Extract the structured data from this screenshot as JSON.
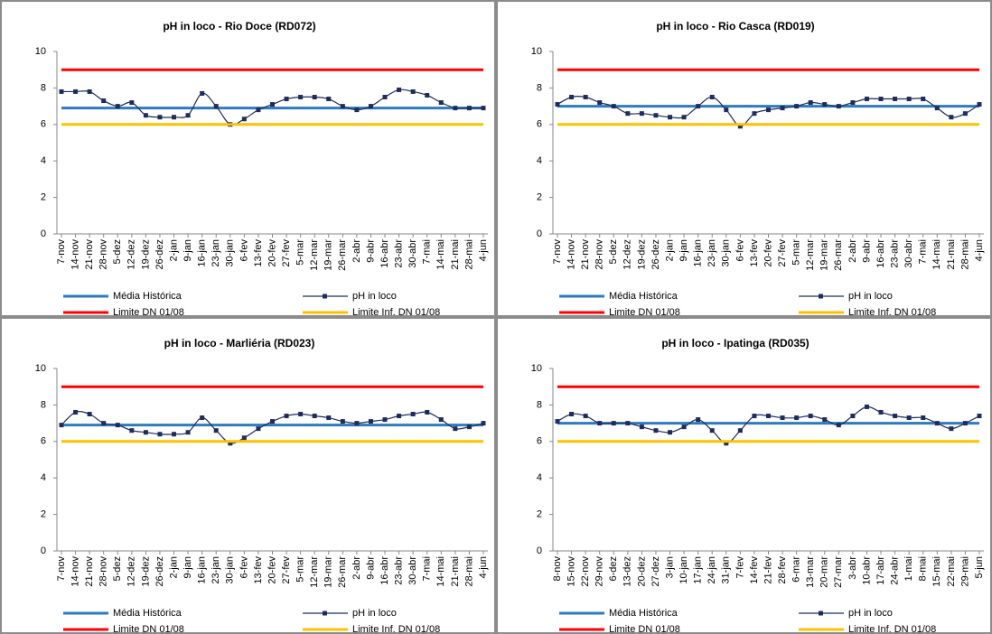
{
  "chart_data": [
    {
      "type": "line",
      "title": "pH in loco - Rio Doce (RD072)",
      "categories": [
        "7-nov",
        "14-nov",
        "21-nov",
        "28-nov",
        "5-dez",
        "12-dez",
        "19-dez",
        "26-dez",
        "2-jan",
        "9-jan",
        "16-jan",
        "23-jan",
        "30-jan",
        "6-fev",
        "13-fev",
        "20-fev",
        "27-fev",
        "5-mar",
        "12-mar",
        "19-mar",
        "26-mar",
        "2-abr",
        "9-abr",
        "16-abr",
        "23-abr",
        "30-abr",
        "7-mai",
        "14-mai",
        "21-mai",
        "28-mai",
        "4-jun"
      ],
      "ylim": [
        0,
        10
      ],
      "yticks": [
        0,
        2,
        4,
        6,
        8,
        10
      ],
      "series": [
        {
          "name": "Média Histórica",
          "color": "#2e7bbf",
          "values": [
            6.9,
            6.9,
            6.9,
            6.9,
            6.9,
            6.9,
            6.9,
            6.9,
            6.9,
            6.9,
            6.9,
            6.9,
            6.9,
            6.9,
            6.9,
            6.9,
            6.9,
            6.9,
            6.9,
            6.9,
            6.9,
            6.9,
            6.9,
            6.9,
            6.9,
            6.9,
            6.9,
            6.9,
            6.9,
            6.9,
            6.9
          ]
        },
        {
          "name": "pH in loco",
          "color": "#1f2d5c",
          "markers": true,
          "smooth": true,
          "values": [
            7.8,
            7.8,
            7.8,
            7.3,
            7.0,
            7.2,
            6.5,
            6.4,
            6.4,
            6.5,
            7.7,
            7.0,
            6.0,
            6.3,
            6.8,
            7.1,
            7.4,
            7.5,
            7.5,
            7.4,
            7.0,
            6.8,
            7.0,
            7.5,
            7.9,
            7.8,
            7.6,
            7.2,
            6.9,
            6.9,
            6.9
          ]
        },
        {
          "name": "Limite DN 01/08",
          "color": "#ff0000",
          "values": [
            9,
            9,
            9,
            9,
            9,
            9,
            9,
            9,
            9,
            9,
            9,
            9,
            9,
            9,
            9,
            9,
            9,
            9,
            9,
            9,
            9,
            9,
            9,
            9,
            9,
            9,
            9,
            9,
            9,
            9,
            9
          ]
        },
        {
          "name": "Limite Inf. DN 01/08",
          "color": "#ffc000",
          "values": [
            6,
            6,
            6,
            6,
            6,
            6,
            6,
            6,
            6,
            6,
            6,
            6,
            6,
            6,
            6,
            6,
            6,
            6,
            6,
            6,
            6,
            6,
            6,
            6,
            6,
            6,
            6,
            6,
            6,
            6,
            6
          ]
        }
      ]
    },
    {
      "type": "line",
      "title": "pH in loco - Rio Casca (RD019)",
      "categories": [
        "7-nov",
        "14-nov",
        "21-nov",
        "28-nov",
        "5-dez",
        "12-dez",
        "19-dez",
        "26-dez",
        "2-jan",
        "9-jan",
        "16-jan",
        "23-jan",
        "30-jan",
        "6-fev",
        "13-fev",
        "20-fev",
        "27-fev",
        "5-mar",
        "12-mar",
        "19-mar",
        "26-mar",
        "2-abr",
        "9-abr",
        "16-abr",
        "23-abr",
        "30-abr",
        "7-mai",
        "14-mai",
        "21-mai",
        "28-mai",
        "4-jun"
      ],
      "ylim": [
        0,
        10
      ],
      "yticks": [
        0,
        2,
        4,
        6,
        8,
        10
      ],
      "series": [
        {
          "name": "Média Histórica",
          "color": "#2e7bbf",
          "values": [
            7.0,
            7.0,
            7.0,
            7.0,
            7.0,
            7.0,
            7.0,
            7.0,
            7.0,
            7.0,
            7.0,
            7.0,
            7.0,
            7.0,
            7.0,
            7.0,
            7.0,
            7.0,
            7.0,
            7.0,
            7.0,
            7.0,
            7.0,
            7.0,
            7.0,
            7.0,
            7.0,
            7.0,
            7.0,
            7.0,
            7.0
          ]
        },
        {
          "name": "pH in loco",
          "color": "#1f2d5c",
          "markers": true,
          "smooth": true,
          "values": [
            7.1,
            7.5,
            7.5,
            7.2,
            7.0,
            6.6,
            6.6,
            6.5,
            6.4,
            6.4,
            7.0,
            7.5,
            6.8,
            5.9,
            6.6,
            6.8,
            6.9,
            7.0,
            7.2,
            7.1,
            7.0,
            7.2,
            7.4,
            7.4,
            7.4,
            7.4,
            7.4,
            6.9,
            6.4,
            6.6,
            7.1
          ]
        },
        {
          "name": "Limite DN 01/08",
          "color": "#ff0000",
          "values": [
            9,
            9,
            9,
            9,
            9,
            9,
            9,
            9,
            9,
            9,
            9,
            9,
            9,
            9,
            9,
            9,
            9,
            9,
            9,
            9,
            9,
            9,
            9,
            9,
            9,
            9,
            9,
            9,
            9,
            9,
            9
          ]
        },
        {
          "name": "Limite Inf. DN 01/08",
          "color": "#ffc000",
          "values": [
            6,
            6,
            6,
            6,
            6,
            6,
            6,
            6,
            6,
            6,
            6,
            6,
            6,
            6,
            6,
            6,
            6,
            6,
            6,
            6,
            6,
            6,
            6,
            6,
            6,
            6,
            6,
            6,
            6,
            6,
            6
          ]
        }
      ]
    },
    {
      "type": "line",
      "title": "pH in loco - Marliéria (RD023)",
      "categories": [
        "7-nov",
        "14-nov",
        "21-nov",
        "28-nov",
        "5-dez",
        "12-dez",
        "19-dez",
        "26-dez",
        "2-jan",
        "9-jan",
        "16-jan",
        "23-jan",
        "30-jan",
        "6-fev",
        "13-fev",
        "20-fev",
        "27-fev",
        "5-mar",
        "12-mar",
        "19-mar",
        "26-mar",
        "2-abr",
        "9-abr",
        "16-abr",
        "23-abr",
        "30-abr",
        "7-mai",
        "14-mai",
        "21-mai",
        "28-mai",
        "4-jun"
      ],
      "ylim": [
        0,
        10
      ],
      "yticks": [
        0,
        2,
        4,
        6,
        8,
        10
      ],
      "series": [
        {
          "name": "Média Histórica",
          "color": "#2e7bbf",
          "values": [
            6.9,
            6.9,
            6.9,
            6.9,
            6.9,
            6.9,
            6.9,
            6.9,
            6.9,
            6.9,
            6.9,
            6.9,
            6.9,
            6.9,
            6.9,
            6.9,
            6.9,
            6.9,
            6.9,
            6.9,
            6.9,
            6.9,
            6.9,
            6.9,
            6.9,
            6.9,
            6.9,
            6.9,
            6.9,
            6.9,
            6.9
          ]
        },
        {
          "name": "pH in loco",
          "color": "#1f2d5c",
          "markers": true,
          "smooth": true,
          "values": [
            6.9,
            7.6,
            7.5,
            7.0,
            6.9,
            6.6,
            6.5,
            6.4,
            6.4,
            6.5,
            7.3,
            6.6,
            5.9,
            6.2,
            6.7,
            7.1,
            7.4,
            7.5,
            7.4,
            7.3,
            7.1,
            7.0,
            7.1,
            7.2,
            7.4,
            7.5,
            7.6,
            7.2,
            6.7,
            6.8,
            7.0
          ]
        },
        {
          "name": "Limite DN 01/08",
          "color": "#ff0000",
          "values": [
            9,
            9,
            9,
            9,
            9,
            9,
            9,
            9,
            9,
            9,
            9,
            9,
            9,
            9,
            9,
            9,
            9,
            9,
            9,
            9,
            9,
            9,
            9,
            9,
            9,
            9,
            9,
            9,
            9,
            9,
            9
          ]
        },
        {
          "name": "Limite Inf. DN 01/08",
          "color": "#ffc000",
          "values": [
            6,
            6,
            6,
            6,
            6,
            6,
            6,
            6,
            6,
            6,
            6,
            6,
            6,
            6,
            6,
            6,
            6,
            6,
            6,
            6,
            6,
            6,
            6,
            6,
            6,
            6,
            6,
            6,
            6,
            6,
            6
          ]
        }
      ]
    },
    {
      "type": "line",
      "title": "pH in loco - Ipatinga (RD035)",
      "categories": [
        "8-nov",
        "15-nov",
        "22-nov",
        "29-nov",
        "6-dez",
        "13-dez",
        "20-dez",
        "27-dez",
        "3-jan",
        "10-jan",
        "17-jan",
        "24-jan",
        "31-jan",
        "7-fev",
        "14-fev",
        "21-fev",
        "28-fev",
        "6-mar",
        "13-mar",
        "20-mar",
        "27-mar",
        "3-abr",
        "10-abr",
        "17-abr",
        "24-abr",
        "1-mai",
        "8-mai",
        "15-mai",
        "22-mai",
        "29-mai",
        "5-jun"
      ],
      "ylim": [
        0,
        10
      ],
      "yticks": [
        0,
        2,
        4,
        6,
        8,
        10
      ],
      "series": [
        {
          "name": "Média Histórica",
          "color": "#2e7bbf",
          "values": [
            7.0,
            7.0,
            7.0,
            7.0,
            7.0,
            7.0,
            7.0,
            7.0,
            7.0,
            7.0,
            7.0,
            7.0,
            7.0,
            7.0,
            7.0,
            7.0,
            7.0,
            7.0,
            7.0,
            7.0,
            7.0,
            7.0,
            7.0,
            7.0,
            7.0,
            7.0,
            7.0,
            7.0,
            7.0,
            7.0,
            7.0
          ]
        },
        {
          "name": "pH in loco",
          "color": "#1f2d5c",
          "markers": true,
          "smooth": true,
          "values": [
            7.1,
            7.5,
            7.4,
            7.0,
            7.0,
            7.0,
            6.8,
            6.6,
            6.5,
            6.8,
            7.2,
            6.6,
            5.9,
            6.6,
            7.4,
            7.4,
            7.3,
            7.3,
            7.4,
            7.2,
            6.9,
            7.4,
            7.9,
            7.6,
            7.4,
            7.3,
            7.3,
            7.0,
            6.7,
            7.0,
            7.4
          ]
        },
        {
          "name": "Limite DN 01/08",
          "color": "#ff0000",
          "values": [
            9,
            9,
            9,
            9,
            9,
            9,
            9,
            9,
            9,
            9,
            9,
            9,
            9,
            9,
            9,
            9,
            9,
            9,
            9,
            9,
            9,
            9,
            9,
            9,
            9,
            9,
            9,
            9,
            9,
            9,
            9
          ]
        },
        {
          "name": "Limite Inf. DN 01/08",
          "color": "#ffc000",
          "values": [
            6,
            6,
            6,
            6,
            6,
            6,
            6,
            6,
            6,
            6,
            6,
            6,
            6,
            6,
            6,
            6,
            6,
            6,
            6,
            6,
            6,
            6,
            6,
            6,
            6,
            6,
            6,
            6,
            6,
            6,
            6
          ]
        }
      ]
    }
  ]
}
